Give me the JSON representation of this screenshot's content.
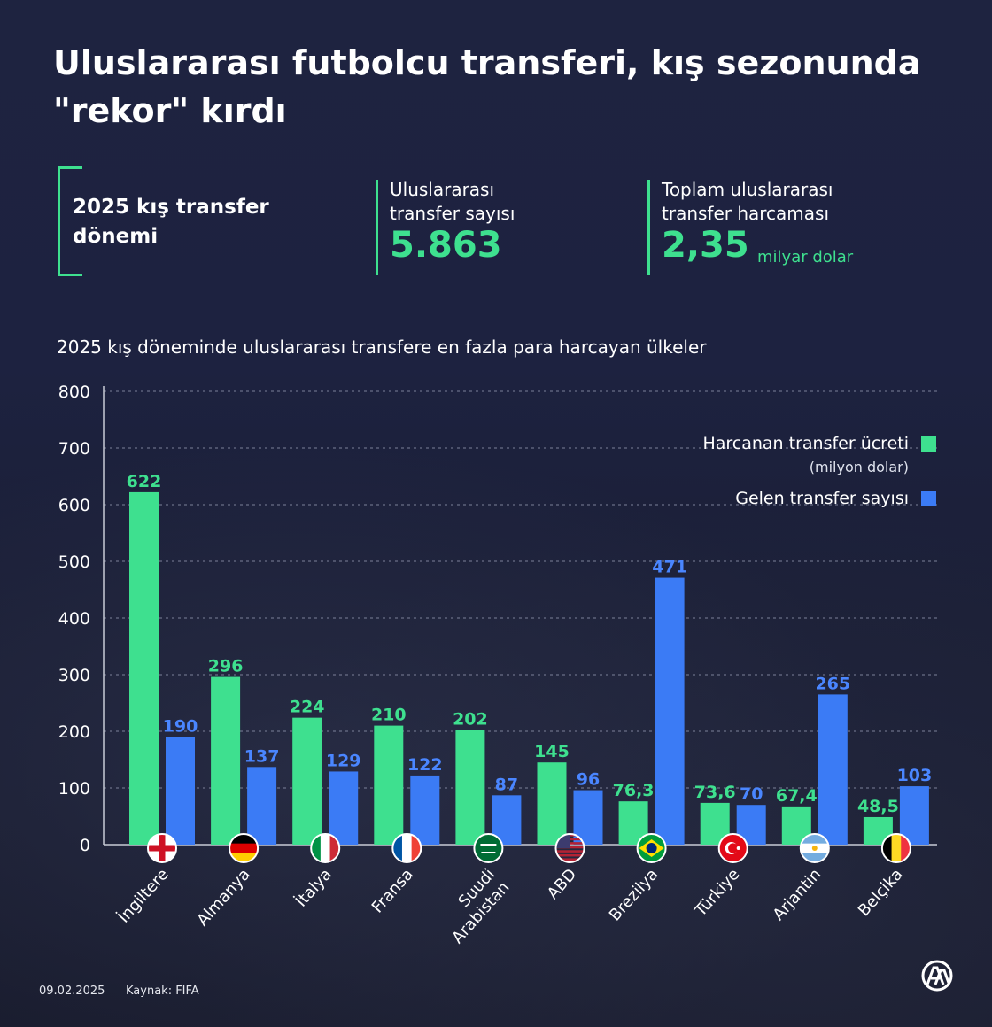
{
  "title": "Uluslararası futbolcu transferi, kış sezonunda \"rekor\" kırdı",
  "period_label": "2025 kış transfer dönemi",
  "stats": [
    {
      "label": "Uluslararası transfer sayısı",
      "value": "5.863",
      "unit": ""
    },
    {
      "label": "Toplam uluslararası transfer harcaması",
      "value": "2,35",
      "unit": "milyar dolar"
    }
  ],
  "chart_subtitle": "2025 kış döneminde uluslararası transfere en fazla para harcayan ülkeler",
  "legend": {
    "spend_label": "Harcanan transfer ücreti",
    "spend_unit": "(milyon dolar)",
    "count_label": "Gelen transfer sayısı"
  },
  "colors": {
    "spend": "#3ee08f",
    "count": "#3b7bf5",
    "accent": "#3ee08f"
  },
  "chart_data": {
    "type": "bar",
    "categories": [
      "İngiltere",
      "Almanya",
      "İtalya",
      "Fransa",
      "Suudi Arabistan",
      "ABD",
      "Brezilya",
      "Türkiye",
      "Arjantin",
      "Belçika"
    ],
    "series": [
      {
        "name": "Harcanan transfer ücreti (milyon dolar)",
        "values": [
          622,
          296,
          224,
          210,
          202,
          145,
          76.3,
          73.6,
          67.4,
          48.5
        ],
        "labels": [
          "622",
          "296",
          "224",
          "210",
          "202",
          "145",
          "76,3",
          "73,6",
          "67,4",
          "48,5"
        ]
      },
      {
        "name": "Gelen transfer sayısı",
        "values": [
          190,
          137,
          129,
          122,
          87,
          96,
          471,
          70,
          265,
          103
        ],
        "labels": [
          "190",
          "137",
          "129",
          "122",
          "87",
          "96",
          "471",
          "70",
          "265",
          "103"
        ]
      }
    ],
    "yticks": [
      0,
      100,
      200,
      300,
      400,
      500,
      600,
      700,
      800
    ],
    "ylim": [
      0,
      800
    ],
    "grid": true,
    "legend_position": "top-right",
    "flag_icons": [
      "england-flag-icon",
      "germany-flag-icon",
      "italy-flag-icon",
      "france-flag-icon",
      "saudi-arabia-flag-icon",
      "usa-flag-icon",
      "brazil-flag-icon",
      "turkey-flag-icon",
      "argentina-flag-icon",
      "belgium-flag-icon"
    ]
  },
  "footer": {
    "date": "09.02.2025",
    "source": "Kaynak: FIFA"
  },
  "logo_icon": "aa-logo-icon"
}
